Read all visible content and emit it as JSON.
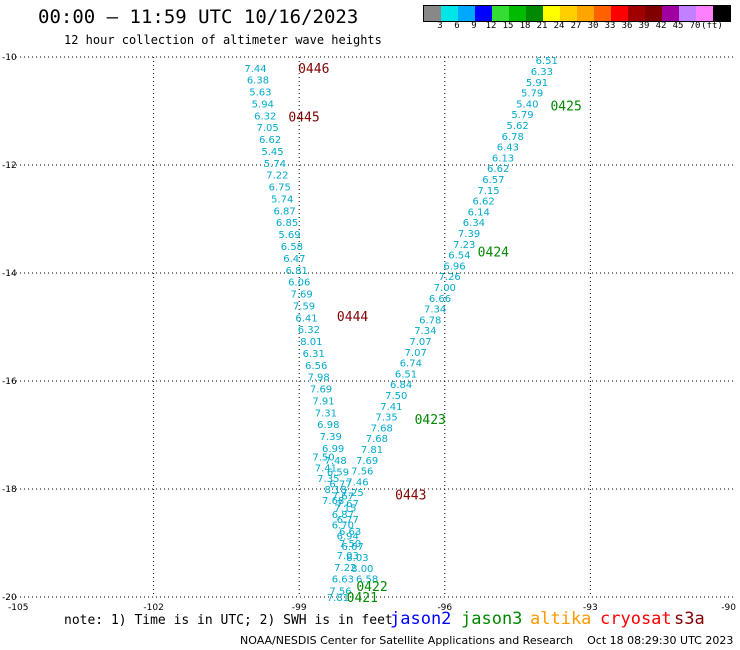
{
  "header": {
    "title": "00:00 – 11:59 UTC 10/16/2023",
    "subtitle": "12 hour collection of altimeter wave heights"
  },
  "colorbar": {
    "labels": [
      "3",
      "6",
      "9",
      "12",
      "15",
      "18",
      "21",
      "24",
      "27",
      "30",
      "33",
      "36",
      "39",
      "42",
      "45",
      "70",
      "(ft)"
    ],
    "colors": [
      "#888888",
      "#00e5e5",
      "#00a8ff",
      "#0000ff",
      "#33dd33",
      "#00bb00",
      "#008800",
      "#ffff00",
      "#ffd000",
      "#ffa500",
      "#ff6000",
      "#ff0000",
      "#a00000",
      "#800000",
      "#a000a0",
      "#c080ff",
      "#ff80ff",
      "#000000"
    ]
  },
  "chart_data": {
    "type": "scatter",
    "xlim": [
      -105,
      -90
    ],
    "ylim": [
      -20,
      -10
    ],
    "xticks": [
      "-105",
      "-102",
      "-99",
      "-96",
      "-93",
      "-90"
    ],
    "yticks": [
      "-10",
      "-12",
      "-14",
      "-16",
      "-18",
      "-20"
    ],
    "grid": true,
    "label_color": "#00aacc",
    "time_color_jason3": "#008800",
    "time_color_s3a": "#800000",
    "tracks": [
      {
        "name": "s3a",
        "lon": [
          -99.9,
          -99.85,
          -99.8,
          -99.75,
          -99.7,
          -99.65,
          -99.6,
          -99.55,
          -99.5,
          -99.45,
          -99.4,
          -99.35,
          -99.3,
          -99.25,
          -99.2,
          -99.15,
          -99.1,
          -99.05,
          -99.0,
          -98.95,
          -98.9,
          -98.85,
          -98.8,
          -98.75,
          -98.7,
          -98.65,
          -98.6,
          -98.55,
          -98.5,
          -98.45,
          -98.4,
          -98.35,
          -98.3,
          -98.25,
          -98.2,
          -98.15,
          -98.1,
          -98.05,
          -98.0,
          -97.95,
          -97.95,
          -98.0,
          -98.05,
          -98.1,
          -98.15,
          -98.2,
          -98.25,
          -98.3,
          -98.4,
          -98.45,
          -98.5
        ],
        "lat": [
          -10.2,
          -10.42,
          -10.64,
          -10.86,
          -11.08,
          -11.3,
          -11.52,
          -11.74,
          -11.96,
          -12.18,
          -12.4,
          -12.62,
          -12.84,
          -13.06,
          -13.28,
          -13.5,
          -13.72,
          -13.94,
          -14.16,
          -14.38,
          -14.6,
          -14.82,
          -15.04,
          -15.26,
          -15.48,
          -15.7,
          -15.92,
          -16.14,
          -16.36,
          -16.58,
          -16.8,
          -17.02,
          -17.24,
          -17.46,
          -17.68,
          -17.9,
          -18.12,
          -18.34,
          -18.56,
          -18.78,
          -19.0,
          -19.22,
          -19.44,
          -19.66,
          -19.88,
          -20.0,
          -18.0,
          -18.2,
          -17.8,
          -17.6,
          -17.4
        ],
        "swh": [
          "7.44",
          "6.38",
          "5.63",
          "5.94",
          "6.32",
          "7.05",
          "6.62",
          "5.45",
          "5.74",
          "7.22",
          "6.75",
          "5.74",
          "6.87",
          "6.85",
          "5.69",
          "6.58",
          "6.47",
          "6.81",
          "6.06",
          "7.69",
          "7.59",
          "6.41",
          "6.32",
          "8.01",
          "6.31",
          "6.56",
          "7.98",
          "7.69",
          "7.91",
          "7.31",
          "6.98",
          "7.39",
          "6.99",
          "7.48",
          "6.59",
          "6.77",
          "7.67",
          "7.15",
          "6.77",
          "6.63",
          "7.50",
          "7.03",
          "7.22",
          "6.63",
          "7.56",
          "7.81",
          "8.18",
          "7.68",
          "7.35",
          "7.41",
          "7.50"
        ]
      },
      {
        "name": "jason3",
        "lon": [
          -93.9,
          -94.0,
          -94.1,
          -94.2,
          -94.3,
          -94.4,
          -94.5,
          -94.6,
          -94.7,
          -94.8,
          -94.9,
          -95.0,
          -95.1,
          -95.2,
          -95.3,
          -95.4,
          -95.5,
          -95.6,
          -95.7,
          -95.8,
          -95.9,
          -96.0,
          -96.1,
          -96.2,
          -96.3,
          -96.4,
          -96.5,
          -96.6,
          -96.7,
          -96.8,
          -96.9,
          -97.0,
          -97.1,
          -97.2,
          -97.3,
          -97.4,
          -97.5,
          -97.6,
          -97.7,
          -97.8,
          -97.9,
          -98.0,
          -98.1,
          -98.1,
          -98.0,
          -97.9,
          -97.8,
          -97.7,
          -97.6
        ],
        "lat": [
          -10.06,
          -10.26,
          -10.46,
          -10.66,
          -10.86,
          -11.06,
          -11.26,
          -11.46,
          -11.66,
          -11.86,
          -12.06,
          -12.26,
          -12.46,
          -12.66,
          -12.86,
          -13.06,
          -13.26,
          -13.46,
          -13.66,
          -13.86,
          -14.06,
          -14.26,
          -14.46,
          -14.66,
          -14.86,
          -15.06,
          -15.26,
          -15.46,
          -15.66,
          -15.86,
          -16.06,
          -16.26,
          -16.46,
          -16.66,
          -16.86,
          -17.06,
          -17.26,
          -17.46,
          -17.66,
          -17.86,
          -18.06,
          -18.26,
          -18.46,
          -18.66,
          -18.86,
          -19.06,
          -19.26,
          -19.46,
          -19.66
        ],
        "swh": [
          "6.51",
          "6.33",
          "5.91",
          "5.79",
          "5.40",
          "5.79",
          "5.62",
          "6.78",
          "6.43",
          "6.13",
          "6.62",
          "6.57",
          "7.15",
          "6.62",
          "6.14",
          "6.34",
          "7.39",
          "7.23",
          "6.54",
          "6.96",
          "7.26",
          "7.00",
          "6.66",
          "7.34",
          "6.78",
          "7.34",
          "7.07",
          "7.07",
          "6.74",
          "6.51",
          "6.84",
          "7.50",
          "7.41",
          "7.35",
          "7.68",
          "7.68",
          "7.81",
          "7.69",
          "7.56",
          "7.46",
          "7.25",
          "7.67",
          "6.87",
          "6.70",
          "6.94",
          "6.67",
          "8.03",
          "8.00",
          "6.58"
        ]
      }
    ],
    "time_labels": [
      {
        "text": "0446",
        "lon": -98.7,
        "lat": -10.2,
        "sat": "s3a"
      },
      {
        "text": "0445",
        "lon": -98.9,
        "lat": -11.1,
        "sat": "s3a"
      },
      {
        "text": "0444",
        "lon": -97.9,
        "lat": -14.8,
        "sat": "s3a"
      },
      {
        "text": "0443",
        "lon": -96.7,
        "lat": -18.1,
        "sat": "s3a"
      },
      {
        "text": "0425",
        "lon": -93.5,
        "lat": -10.9,
        "sat": "jason3"
      },
      {
        "text": "0424",
        "lon": -95.0,
        "lat": -13.6,
        "sat": "jason3"
      },
      {
        "text": "0423",
        "lon": -96.3,
        "lat": -16.7,
        "sat": "jason3"
      },
      {
        "text": "0422",
        "lon": -97.5,
        "lat": -19.8,
        "sat": "jason3"
      },
      {
        "text": "0421",
        "lon": -97.7,
        "lat": -20.0,
        "sat": "jason3"
      }
    ]
  },
  "legend": {
    "note": "note: 1) Time is in UTC; 2) SWH is in feet",
    "satellites": [
      {
        "name": "jason2",
        "color": "#0000ff"
      },
      {
        "name": "jason3",
        "color": "#008800"
      },
      {
        "name": "altika",
        "color": "#ff9900"
      },
      {
        "name": "cryosat",
        "color": "#ff0000"
      },
      {
        "name": "s3a",
        "color": "#800000"
      }
    ]
  },
  "footer": {
    "credit": "NOAA/NESDIS Center for Satellite Applications and Research    Oct 18 08:29:30 UTC 2023"
  }
}
